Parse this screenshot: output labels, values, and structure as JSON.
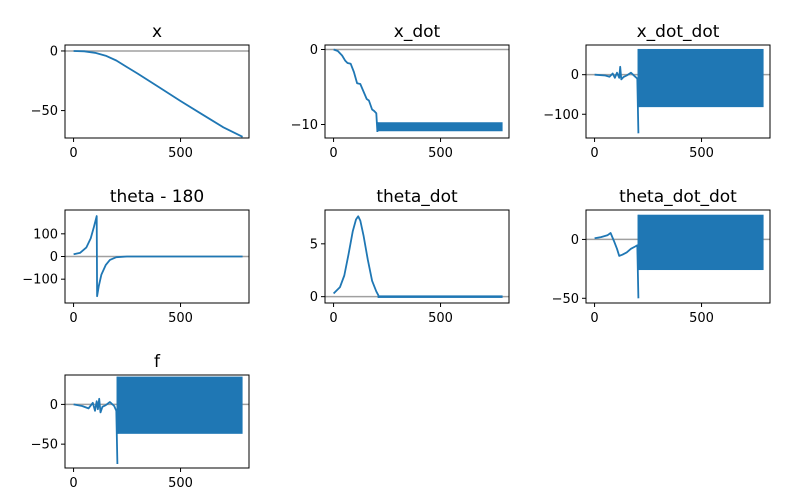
{
  "chart_data": [
    {
      "type": "line",
      "title": "x",
      "xlim": [
        -40,
        820
      ],
      "ylim": [
        -73,
        5
      ],
      "xticks": [
        0,
        500
      ],
      "yticks": [
        0,
        -50
      ],
      "zero_line": true,
      "series": [
        {
          "mode": "line",
          "points": [
            [
              0,
              0
            ],
            [
              50,
              -0.3
            ],
            [
              100,
              -1.5
            ],
            [
              150,
              -4
            ],
            [
              200,
              -8
            ],
            [
              250,
              -13.5
            ],
            [
              300,
              -19
            ],
            [
              400,
              -30.5
            ],
            [
              500,
              -42
            ],
            [
              600,
              -53
            ],
            [
              700,
              -64
            ],
            [
              790,
              -72
            ]
          ]
        }
      ]
    },
    {
      "type": "line",
      "title": "x_dot",
      "xlim": [
        -40,
        820
      ],
      "ylim": [
        -11.8,
        0.6
      ],
      "xticks": [
        0,
        500
      ],
      "yticks": [
        0,
        -10
      ],
      "zero_line": true,
      "series": [
        {
          "mode": "line",
          "points": [
            [
              0,
              0
            ],
            [
              20,
              -0.2
            ],
            [
              40,
              -0.8
            ],
            [
              55,
              -1.5
            ],
            [
              65,
              -1.8
            ],
            [
              80,
              -1.9
            ],
            [
              95,
              -3
            ],
            [
              110,
              -4.5
            ],
            [
              125,
              -4.6
            ],
            [
              140,
              -5.6
            ],
            [
              155,
              -6.6
            ],
            [
              165,
              -6.8
            ],
            [
              180,
              -8
            ],
            [
              190,
              -8.2
            ],
            [
              200,
              -8.5
            ],
            [
              205,
              -11
            ]
          ]
        },
        {
          "mode": "band",
          "x_start": 205,
          "x_end": 790,
          "low": -10.9,
          "high": -9.7
        }
      ]
    },
    {
      "type": "line",
      "title": "x_dot_dot",
      "xlim": [
        -40,
        820
      ],
      "ylim": [
        -160,
        75
      ],
      "xticks": [
        0,
        500
      ],
      "yticks": [
        0,
        -100
      ],
      "zero_line": true,
      "series": [
        {
          "mode": "line",
          "points": [
            [
              0,
              0
            ],
            [
              50,
              -2
            ],
            [
              70,
              -5
            ],
            [
              85,
              3
            ],
            [
              95,
              -8
            ],
            [
              105,
              5
            ],
            [
              115,
              -8
            ],
            [
              120,
              20
            ],
            [
              125,
              -12
            ],
            [
              135,
              -6
            ],
            [
              150,
              -2
            ],
            [
              170,
              5
            ],
            [
              190,
              -5
            ],
            [
              200,
              -10
            ],
            [
              205,
              -148
            ]
          ]
        },
        {
          "mode": "band",
          "x_start": 205,
          "x_end": 790,
          "low": -82,
          "high": 65
        }
      ]
    },
    {
      "type": "line",
      "title": "theta - 180",
      "xlim": [
        -40,
        820
      ],
      "ylim": [
        -205,
        205
      ],
      "xticks": [
        0,
        500
      ],
      "yticks": [
        100,
        0,
        -100
      ],
      "zero_line": true,
      "series": [
        {
          "mode": "line",
          "points": [
            [
              0,
              10
            ],
            [
              30,
              16
            ],
            [
              60,
              40
            ],
            [
              80,
              80
            ],
            [
              95,
              130
            ],
            [
              108,
              178
            ],
            [
              110,
              -175
            ],
            [
              118,
              -130
            ],
            [
              130,
              -80
            ],
            [
              150,
              -38
            ],
            [
              170,
              -15
            ],
            [
              200,
              -3
            ],
            [
              250,
              0
            ],
            [
              400,
              0
            ],
            [
              790,
              0
            ]
          ]
        }
      ]
    },
    {
      "type": "line",
      "title": "theta_dot",
      "xlim": [
        -40,
        820
      ],
      "ylim": [
        -0.6,
        8.2
      ],
      "xticks": [
        0,
        500
      ],
      "yticks": [
        5,
        0
      ],
      "zero_line": true,
      "series": [
        {
          "mode": "line",
          "points": [
            [
              0,
              0.3
            ],
            [
              30,
              0.9
            ],
            [
              50,
              2
            ],
            [
              70,
              4
            ],
            [
              90,
              6.2
            ],
            [
              105,
              7.3
            ],
            [
              115,
              7.6
            ],
            [
              125,
              7.2
            ],
            [
              140,
              5.8
            ],
            [
              160,
              3.5
            ],
            [
              180,
              1.5
            ],
            [
              200,
              0.5
            ],
            [
              210,
              0.1
            ]
          ]
        },
        {
          "mode": "band",
          "x_start": 210,
          "x_end": 790,
          "low": -0.12,
          "high": 0.12
        }
      ]
    },
    {
      "type": "line",
      "title": "theta_dot_dot",
      "xlim": [
        -40,
        820
      ],
      "ylim": [
        -54,
        25
      ],
      "xticks": [
        0,
        500
      ],
      "yticks": [
        0,
        -50
      ],
      "zero_line": true,
      "series": [
        {
          "mode": "line",
          "points": [
            [
              0,
              1
            ],
            [
              30,
              2
            ],
            [
              60,
              3.5
            ],
            [
              75,
              5.5
            ],
            [
              90,
              -1
            ],
            [
              105,
              -8
            ],
            [
              115,
              -14
            ],
            [
              130,
              -13
            ],
            [
              150,
              -11
            ],
            [
              170,
              -8
            ],
            [
              190,
              -6
            ],
            [
              200,
              -5
            ],
            [
              205,
              -50
            ]
          ]
        },
        {
          "mode": "band",
          "x_start": 205,
          "x_end": 790,
          "low": -26,
          "high": 21
        }
      ]
    },
    {
      "type": "line",
      "title": "f",
      "xlim": [
        -40,
        820
      ],
      "ylim": [
        -80,
        37
      ],
      "xticks": [
        0,
        500
      ],
      "yticks": [
        0,
        -50
      ],
      "zero_line": true,
      "series": [
        {
          "mode": "line",
          "points": [
            [
              0,
              0
            ],
            [
              40,
              -2
            ],
            [
              70,
              -5
            ],
            [
              90,
              2
            ],
            [
              100,
              -8
            ],
            [
              108,
              4
            ],
            [
              114,
              -6
            ],
            [
              120,
              7
            ],
            [
              126,
              -10
            ],
            [
              135,
              -3
            ],
            [
              150,
              -1
            ],
            [
              170,
              3
            ],
            [
              190,
              -2
            ],
            [
              200,
              -8
            ],
            [
              205,
              -75
            ]
          ]
        },
        {
          "mode": "band",
          "x_start": 205,
          "x_end": 790,
          "low": -37,
          "high": 35
        }
      ]
    }
  ],
  "colors": {
    "line": "#1f77b4",
    "zero_line": "#a0a0a0",
    "axes": "#000000"
  }
}
